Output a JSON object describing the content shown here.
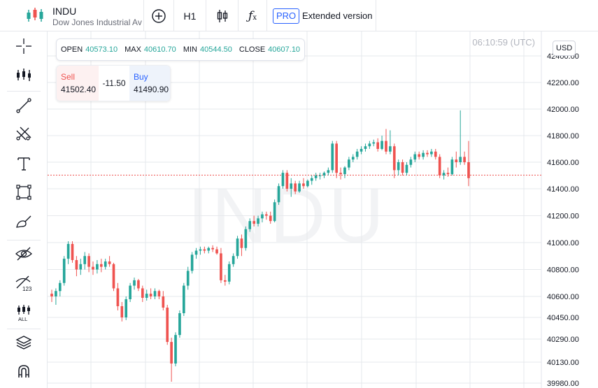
{
  "symbol": {
    "name": "INDU",
    "description": "Dow Jones Industrial Average"
  },
  "toolbar": {
    "add_icon": "plus-circle-icon",
    "timeframe": "H1",
    "chart_type_icon": "candles-icon",
    "indicators_icon": "function-icon",
    "pro_badge": "PRO",
    "extended_label": "Extended version"
  },
  "left_tools": [
    {
      "name": "crosshair-icon"
    },
    {
      "name": "chart-type-icon"
    },
    {
      "name": "trend-line-icon"
    },
    {
      "name": "fib-tool-icon"
    },
    {
      "name": "text-tool-icon"
    },
    {
      "name": "rectangle-tool-icon"
    },
    {
      "name": "brush-tool-icon"
    },
    {
      "name": "hide-drawings-icon"
    },
    {
      "name": "hide-indicators-icon"
    },
    {
      "name": "hide-all-icon"
    },
    {
      "name": "layers-icon"
    },
    {
      "name": "magnet-icon"
    }
  ],
  "ohlc": {
    "open_label": "OPEN",
    "open": "40573.10",
    "max_label": "MAX",
    "max": "40610.70",
    "min_label": "MIN",
    "min": "40544.50",
    "close_label": "CLOSE",
    "close": "40607.10"
  },
  "trade": {
    "sell_label": "Sell",
    "sell_price": "41502.40",
    "spread": "-11.50",
    "buy_label": "Buy",
    "buy_price": "41490.90"
  },
  "time": "06:10:59 (UTC)",
  "currency": "USD",
  "watermark": "INDU",
  "colors": {
    "up": "#26a69a",
    "down": "#ef5350",
    "price_line": "#ef5350",
    "grid": "#e6e8ec"
  },
  "chart_data": {
    "type": "candlestick",
    "price_ticks": [
      "42400.00",
      "42200.00",
      "42000.00",
      "41800.00",
      "41600.00",
      "41400.00",
      "41200.00",
      "41000.00",
      "40800.00",
      "40600.00",
      "40450.00",
      "40290.00",
      "40130.00",
      "39980.00"
    ],
    "current_price": 41502.4,
    "candles": [
      {
        "o": 40620,
        "h": 40650,
        "l": 40560,
        "c": 40600
      },
      {
        "o": 40600,
        "h": 40660,
        "l": 40540,
        "c": 40640
      },
      {
        "o": 40640,
        "h": 40720,
        "l": 40600,
        "c": 40700
      },
      {
        "o": 40700,
        "h": 40900,
        "l": 40680,
        "c": 40880
      },
      {
        "o": 40880,
        "h": 41010,
        "l": 40840,
        "c": 40990
      },
      {
        "o": 40990,
        "h": 41010,
        "l": 40850,
        "c": 40870
      },
      {
        "o": 40870,
        "h": 40900,
        "l": 40750,
        "c": 40800
      },
      {
        "o": 40800,
        "h": 40880,
        "l": 40760,
        "c": 40840
      },
      {
        "o": 40840,
        "h": 40930,
        "l": 40800,
        "c": 40900
      },
      {
        "o": 40900,
        "h": 40920,
        "l": 40780,
        "c": 40820
      },
      {
        "o": 40820,
        "h": 40860,
        "l": 40760,
        "c": 40800
      },
      {
        "o": 40800,
        "h": 40870,
        "l": 40770,
        "c": 40840
      },
      {
        "o": 40840,
        "h": 40880,
        "l": 40780,
        "c": 40820
      },
      {
        "o": 40820,
        "h": 40880,
        "l": 40800,
        "c": 40860
      },
      {
        "o": 40860,
        "h": 40900,
        "l": 40820,
        "c": 40840
      },
      {
        "o": 40840,
        "h": 40850,
        "l": 40640,
        "c": 40660
      },
      {
        "o": 40660,
        "h": 40700,
        "l": 40500,
        "c": 40530
      },
      {
        "o": 40530,
        "h": 40560,
        "l": 40420,
        "c": 40450
      },
      {
        "o": 40450,
        "h": 40600,
        "l": 40430,
        "c": 40580
      },
      {
        "o": 40580,
        "h": 40700,
        "l": 40560,
        "c": 40680
      },
      {
        "o": 40680,
        "h": 40740,
        "l": 40650,
        "c": 40720
      },
      {
        "o": 40720,
        "h": 40730,
        "l": 40640,
        "c": 40660
      },
      {
        "o": 40660,
        "h": 40680,
        "l": 40560,
        "c": 40590
      },
      {
        "o": 40590,
        "h": 40650,
        "l": 40570,
        "c": 40620
      },
      {
        "o": 40620,
        "h": 40660,
        "l": 40580,
        "c": 40600
      },
      {
        "o": 40600,
        "h": 40660,
        "l": 40580,
        "c": 40640
      },
      {
        "o": 40640,
        "h": 40650,
        "l": 40580,
        "c": 40600
      },
      {
        "o": 40600,
        "h": 40640,
        "l": 40500,
        "c": 40520
      },
      {
        "o": 40520,
        "h": 40540,
        "l": 40250,
        "c": 40270
      },
      {
        "o": 40270,
        "h": 40300,
        "l": 39990,
        "c": 40120
      },
      {
        "o": 40120,
        "h": 40340,
        "l": 40100,
        "c": 40320
      },
      {
        "o": 40320,
        "h": 40500,
        "l": 40300,
        "c": 40480
      },
      {
        "o": 40480,
        "h": 40700,
        "l": 40460,
        "c": 40680
      },
      {
        "o": 40680,
        "h": 40820,
        "l": 40650,
        "c": 40790
      },
      {
        "o": 40790,
        "h": 40930,
        "l": 40770,
        "c": 40910
      },
      {
        "o": 40910,
        "h": 40960,
        "l": 40880,
        "c": 40940
      },
      {
        "o": 40940,
        "h": 40970,
        "l": 40910,
        "c": 40950
      },
      {
        "o": 40950,
        "h": 40970,
        "l": 40920,
        "c": 40940
      },
      {
        "o": 40940,
        "h": 40970,
        "l": 40920,
        "c": 40960
      },
      {
        "o": 40960,
        "h": 40980,
        "l": 40930,
        "c": 40950
      },
      {
        "o": 40950,
        "h": 40970,
        "l": 40910,
        "c": 40920
      },
      {
        "o": 40920,
        "h": 40960,
        "l": 40700,
        "c": 40720
      },
      {
        "o": 40720,
        "h": 40760,
        "l": 40680,
        "c": 40710
      },
      {
        "o": 40710,
        "h": 40860,
        "l": 40690,
        "c": 40840
      },
      {
        "o": 40840,
        "h": 40920,
        "l": 40820,
        "c": 40900
      },
      {
        "o": 40900,
        "h": 41050,
        "l": 40880,
        "c": 41030
      },
      {
        "o": 41030,
        "h": 41060,
        "l": 40900,
        "c": 40960
      },
      {
        "o": 40960,
        "h": 41120,
        "l": 40940,
        "c": 41100
      },
      {
        "o": 41100,
        "h": 41180,
        "l": 41080,
        "c": 41160
      },
      {
        "o": 41160,
        "h": 41200,
        "l": 41120,
        "c": 41140
      },
      {
        "o": 41140,
        "h": 41200,
        "l": 41120,
        "c": 41180
      },
      {
        "o": 41180,
        "h": 41230,
        "l": 41150,
        "c": 41210
      },
      {
        "o": 41210,
        "h": 41230,
        "l": 41170,
        "c": 41200
      },
      {
        "o": 41200,
        "h": 41230,
        "l": 41140,
        "c": 41160
      },
      {
        "o": 41160,
        "h": 41320,
        "l": 41150,
        "c": 41300
      },
      {
        "o": 41300,
        "h": 41440,
        "l": 41280,
        "c": 41420
      },
      {
        "o": 41420,
        "h": 41540,
        "l": 41400,
        "c": 41520
      },
      {
        "o": 41520,
        "h": 41540,
        "l": 41380,
        "c": 41400
      },
      {
        "o": 41400,
        "h": 41480,
        "l": 41340,
        "c": 41440
      },
      {
        "o": 41440,
        "h": 41460,
        "l": 41360,
        "c": 41380
      },
      {
        "o": 41380,
        "h": 41460,
        "l": 41370,
        "c": 41440
      },
      {
        "o": 41440,
        "h": 41480,
        "l": 41400,
        "c": 41420
      },
      {
        "o": 41420,
        "h": 41470,
        "l": 41410,
        "c": 41460
      },
      {
        "o": 41460,
        "h": 41500,
        "l": 41430,
        "c": 41480
      },
      {
        "o": 41480,
        "h": 41520,
        "l": 41460,
        "c": 41500
      },
      {
        "o": 41500,
        "h": 41520,
        "l": 41470,
        "c": 41500
      },
      {
        "o": 41500,
        "h": 41530,
        "l": 41480,
        "c": 41520
      },
      {
        "o": 41520,
        "h": 41560,
        "l": 41500,
        "c": 41540
      },
      {
        "o": 41540,
        "h": 41760,
        "l": 41520,
        "c": 41740
      },
      {
        "o": 41740,
        "h": 41760,
        "l": 41480,
        "c": 41520
      },
      {
        "o": 41520,
        "h": 41560,
        "l": 41470,
        "c": 41510
      },
      {
        "o": 41510,
        "h": 41570,
        "l": 41480,
        "c": 41560
      },
      {
        "o": 41560,
        "h": 41640,
        "l": 41540,
        "c": 41620
      },
      {
        "o": 41620,
        "h": 41660,
        "l": 41600,
        "c": 41640
      },
      {
        "o": 41640,
        "h": 41700,
        "l": 41620,
        "c": 41680
      },
      {
        "o": 41680,
        "h": 41720,
        "l": 41660,
        "c": 41700
      },
      {
        "o": 41700,
        "h": 41740,
        "l": 41680,
        "c": 41720
      },
      {
        "o": 41720,
        "h": 41760,
        "l": 41700,
        "c": 41740
      },
      {
        "o": 41740,
        "h": 41770,
        "l": 41720,
        "c": 41750
      },
      {
        "o": 41750,
        "h": 41780,
        "l": 41680,
        "c": 41700
      },
      {
        "o": 41700,
        "h": 41800,
        "l": 41690,
        "c": 41760
      },
      {
        "o": 41760,
        "h": 41850,
        "l": 41660,
        "c": 41680
      },
      {
        "o": 41680,
        "h": 41840,
        "l": 41660,
        "c": 41720
      },
      {
        "o": 41720,
        "h": 41740,
        "l": 41480,
        "c": 41540
      },
      {
        "o": 41540,
        "h": 41620,
        "l": 41500,
        "c": 41600
      },
      {
        "o": 41600,
        "h": 41620,
        "l": 41500,
        "c": 41520
      },
      {
        "o": 41520,
        "h": 41600,
        "l": 41500,
        "c": 41580
      },
      {
        "o": 41580,
        "h": 41640,
        "l": 41560,
        "c": 41620
      },
      {
        "o": 41620,
        "h": 41680,
        "l": 41600,
        "c": 41660
      },
      {
        "o": 41660,
        "h": 41680,
        "l": 41620,
        "c": 41640
      },
      {
        "o": 41640,
        "h": 41690,
        "l": 41620,
        "c": 41670
      },
      {
        "o": 41670,
        "h": 41690,
        "l": 41640,
        "c": 41660
      },
      {
        "o": 41660,
        "h": 41700,
        "l": 41640,
        "c": 41680
      },
      {
        "o": 41680,
        "h": 41700,
        "l": 41620,
        "c": 41640
      },
      {
        "o": 41640,
        "h": 41660,
        "l": 41480,
        "c": 41500
      },
      {
        "o": 41500,
        "h": 41540,
        "l": 41470,
        "c": 41520
      },
      {
        "o": 41520,
        "h": 41560,
        "l": 41490,
        "c": 41510
      },
      {
        "o": 41510,
        "h": 41640,
        "l": 41500,
        "c": 41620
      },
      {
        "o": 41620,
        "h": 41680,
        "l": 41560,
        "c": 41600
      },
      {
        "o": 41600,
        "h": 41990,
        "l": 41580,
        "c": 41640
      },
      {
        "o": 41640,
        "h": 41680,
        "l": 41580,
        "c": 41600
      },
      {
        "o": 41600,
        "h": 41760,
        "l": 41420,
        "c": 41480
      }
    ]
  }
}
